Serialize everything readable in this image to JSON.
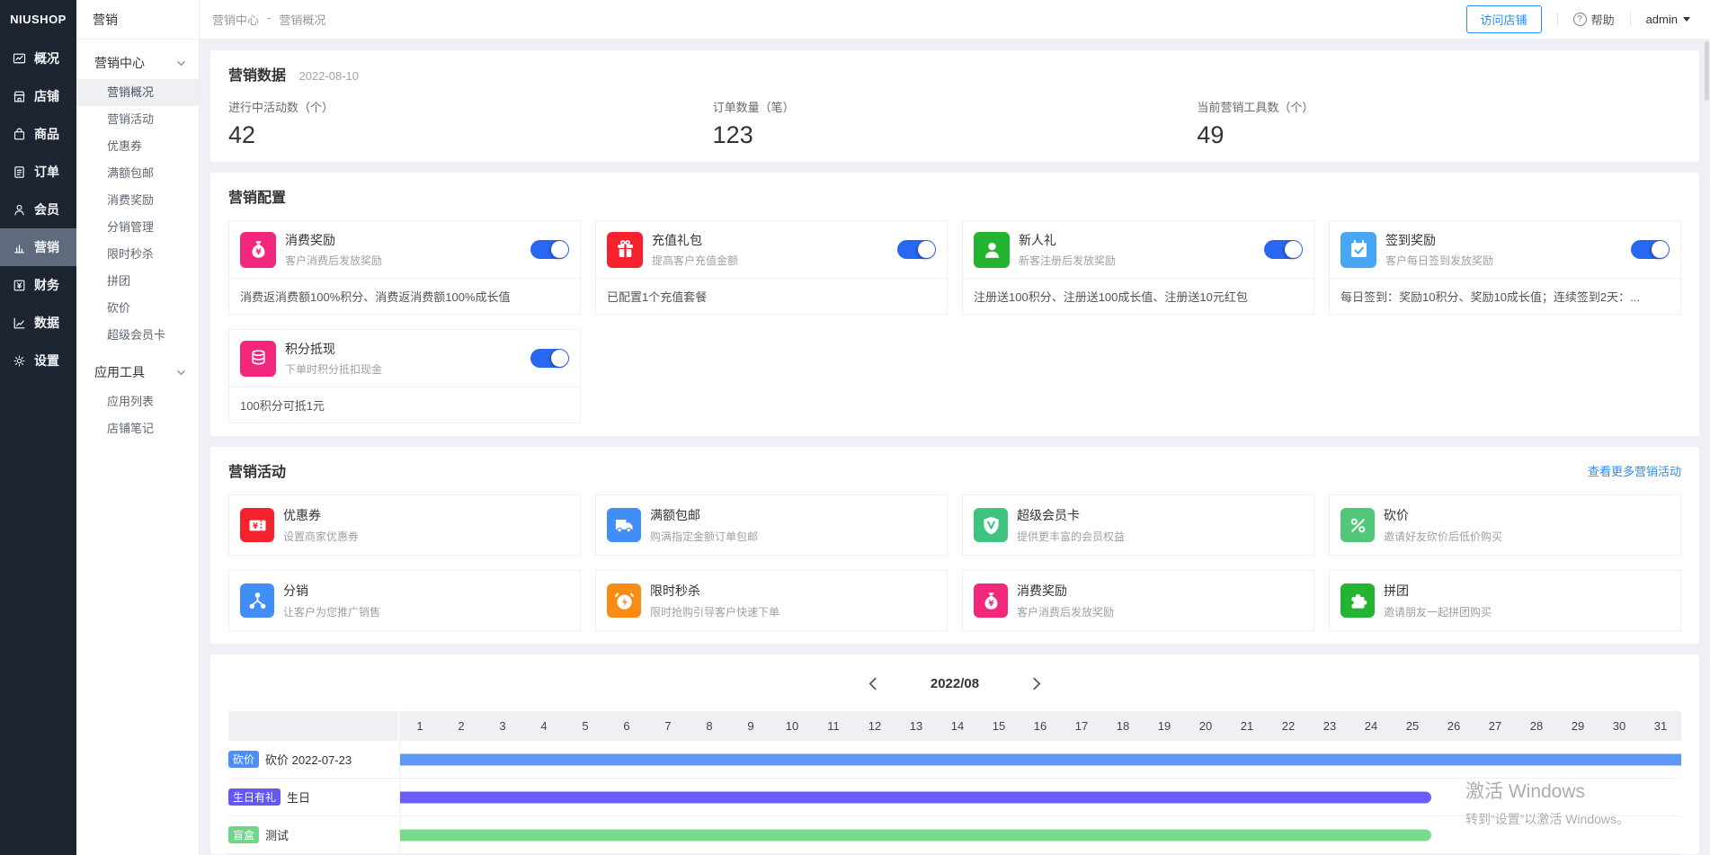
{
  "app": {
    "logo": "NIUSHOP"
  },
  "colors": {
    "primary": "#2d8cf0",
    "toggle_on": "#2867f0",
    "sidebar_bg": "#1e2532",
    "sidebar_active": "#5f6a7d"
  },
  "mainnav": [
    {
      "label": "概况",
      "icon": "overview",
      "active": false
    },
    {
      "label": "店铺",
      "icon": "shop",
      "active": false
    },
    {
      "label": "商品",
      "icon": "goods",
      "active": false
    },
    {
      "label": "订单",
      "icon": "order",
      "active": false
    },
    {
      "label": "会员",
      "icon": "member",
      "active": false
    },
    {
      "label": "营销",
      "icon": "marketing",
      "active": true
    },
    {
      "label": "财务",
      "icon": "finance",
      "active": false
    },
    {
      "label": "数据",
      "icon": "data",
      "active": false
    },
    {
      "label": "设置",
      "icon": "settings",
      "active": false
    }
  ],
  "subnav": {
    "title": "营销",
    "groups": [
      {
        "label": "营销中心",
        "items": [
          {
            "label": "营销概况",
            "active": true
          },
          {
            "label": "营销活动",
            "active": false
          },
          {
            "label": "优惠券",
            "active": false
          },
          {
            "label": "满额包邮",
            "active": false
          },
          {
            "label": "消费奖励",
            "active": false
          },
          {
            "label": "分销管理",
            "active": false
          },
          {
            "label": "限时秒杀",
            "active": false
          },
          {
            "label": "拼团",
            "active": false
          },
          {
            "label": "砍价",
            "active": false
          },
          {
            "label": "超级会员卡",
            "active": false
          }
        ]
      },
      {
        "label": "应用工具",
        "items": [
          {
            "label": "应用列表",
            "active": false
          },
          {
            "label": "店铺笔记",
            "active": false
          }
        ]
      }
    ]
  },
  "topbar": {
    "breadcrumb_root": "营销中心",
    "breadcrumb_sep": "-",
    "breadcrumb_current": "营销概况",
    "visit_store": "访问店铺",
    "help": "帮助",
    "help_icon_glyph": "?",
    "user": "admin"
  },
  "marketing_data": {
    "title": "营销数据",
    "date": "2022-08-10",
    "stats": [
      {
        "label": "进行中活动数（个）",
        "value": "42"
      },
      {
        "label": "订单数量（笔）",
        "value": "123"
      },
      {
        "label": "当前营销工具数（个）",
        "value": "49"
      }
    ]
  },
  "marketing_config": {
    "title": "营销配置",
    "cards": [
      {
        "name": "消费奖励",
        "desc": "客户消费后发放奖励",
        "footer": "消费返消费额100%积分、消费返消费额100%成长值",
        "icon": "moneybag",
        "color": "#f0277d",
        "enabled": true
      },
      {
        "name": "充值礼包",
        "desc": "提高客户充值金额",
        "footer": "已配置1个充值套餐",
        "icon": "gift",
        "color": "#f5222d",
        "enabled": true
      },
      {
        "name": "新人礼",
        "desc": "新客注册后发放奖励",
        "footer": "注册送100积分、注册送100成长值、注册送10元红包",
        "icon": "newuser",
        "color": "#23b531",
        "enabled": true
      },
      {
        "name": "签到奖励",
        "desc": "客户每日签到发放奖励",
        "footer": "每日签到：奖励10积分、奖励10成长值；连续签到2天：...",
        "icon": "signin",
        "color": "#47a7f5",
        "enabled": true
      },
      {
        "name": "积分抵现",
        "desc": "下单时积分抵扣现金",
        "footer": "100积分可抵1元",
        "icon": "coins",
        "color": "#f0277d",
        "enabled": true
      }
    ]
  },
  "marketing_activity": {
    "title": "营销活动",
    "more_link": "查看更多营销活动",
    "cards": [
      {
        "name": "优惠券",
        "desc": "设置商家优惠券",
        "icon": "coupon",
        "color": "#f5222d"
      },
      {
        "name": "满额包邮",
        "desc": "购满指定金额订单包邮",
        "icon": "truck",
        "color": "#418ef7"
      },
      {
        "name": "超级会员卡",
        "desc": "提供更丰富的会员权益",
        "icon": "vip",
        "color": "#3dc47e"
      },
      {
        "name": "砍价",
        "desc": "邀请好友砍价后低价购买",
        "icon": "bargain",
        "color": "#52c77a"
      },
      {
        "name": "分销",
        "desc": "让客户为您推广销售",
        "icon": "distribution",
        "color": "#418ef7"
      },
      {
        "name": "限时秒杀",
        "desc": "限时抢购引导客户快速下单",
        "icon": "seckill",
        "color": "#fa8c16"
      },
      {
        "name": "消费奖励",
        "desc": "客户消费后发放奖励",
        "icon": "moneybag",
        "color": "#f0277d"
      },
      {
        "name": "拼团",
        "desc": "邀请朋友一起拼团购买",
        "icon": "puzzle",
        "color": "#23b531"
      }
    ]
  },
  "calendar": {
    "month": "2022/08",
    "days": [
      1,
      2,
      3,
      4,
      5,
      6,
      7,
      8,
      9,
      10,
      11,
      12,
      13,
      14,
      15,
      16,
      17,
      18,
      19,
      20,
      21,
      22,
      23,
      24,
      25,
      26,
      27,
      28,
      29,
      30,
      31
    ],
    "rows": [
      {
        "badge": "砍价",
        "badge_color": "#4c8df6",
        "label": "砍价 2022-07-23",
        "bar_color": "#5f97f5",
        "bar_percent": 100,
        "rounded": false
      },
      {
        "badge": "生日有礼",
        "badge_color": "#6458ee",
        "label": "生日",
        "bar_color": "#6b5df7",
        "bar_percent": 80.5,
        "rounded": true
      },
      {
        "badge": "盲盒",
        "badge_color": "#6fd687",
        "label": "测试",
        "bar_color": "#79da8d",
        "bar_percent": 80.5,
        "rounded": true
      }
    ]
  },
  "watermark": {
    "line1": "激活 Windows",
    "line2": "转到“设置”以激活 Windows。"
  }
}
